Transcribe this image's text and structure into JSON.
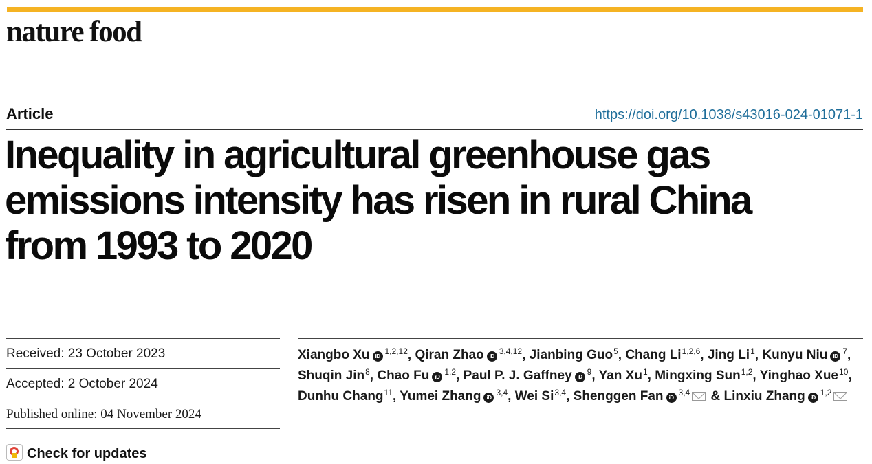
{
  "journal": {
    "name": "nature food",
    "accent_color": "#f5b323"
  },
  "article": {
    "type": "Article",
    "doi": "https://doi.org/10.1038/s43016-024-01071-1",
    "title_lines": [
      "Inequality in agricultural greenhouse gas",
      "emissions intensity has risen in rural China",
      "from 1993 to 2020"
    ]
  },
  "dates": {
    "received": "Received: 23 October 2023",
    "accepted": "Accepted: 2 October 2024",
    "published": "Published online: 04 November 2024"
  },
  "check_updates": {
    "label": "Check for updates",
    "icon": "check-for-updates-icon"
  },
  "authors": [
    {
      "name": "Xiangbo Xu",
      "orcid": true,
      "sup": "1,2,12",
      "sep": ", "
    },
    {
      "name": "Qiran Zhao",
      "orcid": true,
      "sup": "3,4,12",
      "sep": ", "
    },
    {
      "name": "Jianbing Guo",
      "orcid": false,
      "sup": "5",
      "sep": ", "
    },
    {
      "name": "Chang Li",
      "orcid": false,
      "sup": "1,2,6",
      "sep": ", "
    },
    {
      "name": "Jing Li",
      "orcid": false,
      "sup": "1",
      "sep": ", "
    },
    {
      "name": "Kunyu Niu",
      "orcid": true,
      "sup": "7",
      "sep": ", "
    },
    {
      "name": "Shuqin Jin",
      "orcid": false,
      "sup": "8",
      "sep": ", "
    },
    {
      "name": "Chao Fu",
      "orcid": true,
      "sup": "1,2",
      "sep": ", "
    },
    {
      "name": "Paul P. J. Gaffney",
      "orcid": true,
      "sup": "9",
      "sep": ", "
    },
    {
      "name": "Yan Xu",
      "orcid": false,
      "sup": "1",
      "sep": ", "
    },
    {
      "name": "Mingxing Sun",
      "orcid": false,
      "sup": "1,2",
      "sep": ", "
    },
    {
      "name": "Yinghao Xue",
      "orcid": false,
      "sup": "10",
      "sep": ", "
    },
    {
      "name": "Dunhu Chang",
      "orcid": false,
      "sup": "11",
      "sep": ", "
    },
    {
      "name": "Yumei Zhang",
      "orcid": true,
      "sup": "3,4",
      "sep": ", "
    },
    {
      "name": "Wei Si",
      "orcid": false,
      "sup": "3,4",
      "sep": ", "
    },
    {
      "name": "Shenggen Fan",
      "orcid": true,
      "sup": "3,4",
      "mail": true,
      "sep": " & "
    },
    {
      "name": "Linxiu Zhang",
      "orcid": true,
      "sup": "1,2",
      "mail": true,
      "sep": ""
    }
  ],
  "orcid_label": "iD"
}
